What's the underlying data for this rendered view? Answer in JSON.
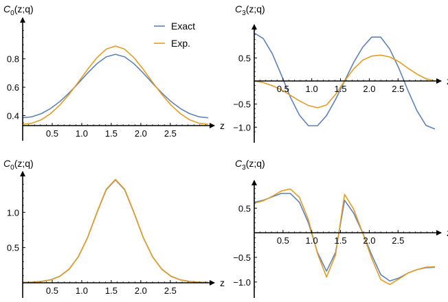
{
  "legend": {
    "entries": [
      {
        "label": "Exact",
        "color": "#5E81B5"
      },
      {
        "label": "Exp.",
        "color": "#E19C24"
      }
    ],
    "placement": "top-right of first panel"
  },
  "chart_data": [
    {
      "type": "line",
      "title": "",
      "ylabel_main": "C",
      "ylabel_sub": "0",
      "ylabel_rest": "(z;q)",
      "xlabel": "z",
      "xlim": [
        0,
        3.14159
      ],
      "ylim": [
        0.33,
        1.05
      ],
      "xticks": [
        0.5,
        1.0,
        1.5,
        2.0,
        2.5
      ],
      "xtick_labels": [
        "0.5",
        "1.0",
        "1.5",
        "2.0",
        "2.5"
      ],
      "yticks": [
        0.4,
        0.6,
        0.8
      ],
      "ytick_labels": [
        "0.4",
        "0.6",
        "0.8"
      ],
      "grid": false,
      "series": [
        {
          "name": "Exact",
          "color": "#5E81B5",
          "x": [
            0,
            0.15708,
            0.31416,
            0.47124,
            0.62832,
            0.7854,
            0.94248,
            1.09956,
            1.25664,
            1.41372,
            1.5708,
            1.72788,
            1.88496,
            2.04204,
            2.19911,
            2.35619,
            2.51327,
            2.67035,
            2.82743,
            2.98451,
            3.14159
          ],
          "values": [
            0.385,
            0.392,
            0.414,
            0.45,
            0.499,
            0.56,
            0.628,
            0.7,
            0.766,
            0.814,
            0.832,
            0.814,
            0.766,
            0.7,
            0.628,
            0.56,
            0.499,
            0.45,
            0.414,
            0.392,
            0.385
          ]
        },
        {
          "name": "Exp.",
          "color": "#E19C24",
          "x": [
            0,
            0.15708,
            0.31416,
            0.47124,
            0.62832,
            0.7854,
            0.94248,
            1.09956,
            1.25664,
            1.41372,
            1.5708,
            1.72788,
            1.88496,
            2.04204,
            2.19911,
            2.35619,
            2.51327,
            2.67035,
            2.82743,
            2.98451,
            3.14159
          ],
          "values": [
            0.339,
            0.347,
            0.371,
            0.414,
            0.474,
            0.55,
            0.636,
            0.726,
            0.808,
            0.868,
            0.89,
            0.868,
            0.808,
            0.726,
            0.636,
            0.55,
            0.474,
            0.414,
            0.371,
            0.347,
            0.339
          ]
        }
      ]
    },
    {
      "type": "line",
      "title": "",
      "ylabel_main": "C",
      "ylabel_sub": "3",
      "ylabel_rest": "(z;q)",
      "xlabel": "z",
      "xlim": [
        0,
        3.14159
      ],
      "ylim": [
        -1.1,
        1.1
      ],
      "xticks": [
        0.5,
        1.0,
        1.5,
        2.0,
        2.5
      ],
      "xtick_labels": [
        "0.5",
        "1.0",
        "1.5",
        "2.0",
        "2.5"
      ],
      "yticks": [
        -1.0,
        -0.5,
        0.5
      ],
      "ytick_labels": [
        "−1.0",
        "−0.5",
        "0.5"
      ],
      "grid": false,
      "series": [
        {
          "name": "Exact",
          "color": "#5E81B5",
          "x": [
            0,
            0.15708,
            0.31416,
            0.47124,
            0.62832,
            0.7854,
            0.94248,
            1.09956,
            1.25664,
            1.41372,
            1.5708,
            1.72788,
            1.88496,
            2.04204,
            2.19911,
            2.35619,
            2.51327,
            2.67035,
            2.82743,
            2.98451,
            3.14159
          ],
          "values": [
            1.04,
            0.92,
            0.59,
            0.13,
            -0.35,
            -0.74,
            -0.97,
            -0.97,
            -0.75,
            -0.4,
            0.0,
            0.4,
            0.73,
            0.95,
            0.95,
            0.69,
            0.28,
            -0.2,
            -0.64,
            -0.96,
            -1.04
          ]
        },
        {
          "name": "Exp.",
          "color": "#E19C24",
          "x": [
            0,
            0.15708,
            0.31416,
            0.47124,
            0.62832,
            0.7854,
            0.94248,
            1.09956,
            1.25664,
            1.41372,
            1.5708,
            1.72788,
            1.88496,
            2.04204,
            2.19911,
            2.35619,
            2.51327,
            2.67035,
            2.82743,
            2.98451,
            3.14159
          ],
          "values": [
            0.0,
            -0.035,
            -0.1,
            -0.19,
            -0.31,
            -0.43,
            -0.53,
            -0.58,
            -0.52,
            -0.29,
            0.0,
            0.26,
            0.45,
            0.54,
            0.56,
            0.52,
            0.42,
            0.28,
            0.15,
            0.05,
            0.0
          ]
        }
      ]
    },
    {
      "type": "line",
      "title": "",
      "ylabel_main": "C",
      "ylabel_sub": "0",
      "ylabel_rest": "(z;q)",
      "xlabel": "z",
      "xlim": [
        0,
        3.14159
      ],
      "ylim": [
        0.0,
        1.5
      ],
      "xticks": [
        0.5,
        1.0,
        1.5,
        2.0,
        2.5
      ],
      "xtick_labels": [
        "0.5",
        "1.0",
        "1.5",
        "2.0",
        "2.5"
      ],
      "yticks": [
        0.5,
        1.0
      ],
      "ytick_labels": [
        "0.5",
        "1.0"
      ],
      "grid": false,
      "series": [
        {
          "name": "Exact",
          "color": "#5E81B5",
          "x": [
            0,
            0.15708,
            0.31416,
            0.47124,
            0.62832,
            0.7854,
            0.94248,
            1.09956,
            1.25664,
            1.41372,
            1.5708,
            1.72788,
            1.88496,
            2.04204,
            2.19911,
            2.35619,
            2.51327,
            2.67035,
            2.82743,
            2.98451,
            3.14159
          ],
          "values": [
            0.006,
            0.009,
            0.019,
            0.042,
            0.093,
            0.193,
            0.37,
            0.642,
            0.993,
            1.319,
            1.46,
            1.319,
            0.993,
            0.642,
            0.37,
            0.193,
            0.093,
            0.042,
            0.019,
            0.009,
            0.006
          ]
        },
        {
          "name": "Exp.",
          "color": "#E19C24",
          "x": [
            0,
            0.15708,
            0.31416,
            0.47124,
            0.62832,
            0.7854,
            0.94248,
            1.09956,
            1.25664,
            1.41372,
            1.5708,
            1.72788,
            1.88496,
            2.04204,
            2.19911,
            2.35619,
            2.51327,
            2.67035,
            2.82743,
            2.98451,
            3.14159
          ],
          "values": [
            0.005,
            0.008,
            0.018,
            0.04,
            0.09,
            0.19,
            0.368,
            0.642,
            0.998,
            1.326,
            1.468,
            1.326,
            0.998,
            0.642,
            0.368,
            0.19,
            0.09,
            0.04,
            0.018,
            0.008,
            0.005
          ]
        }
      ]
    },
    {
      "type": "line",
      "title": "",
      "ylabel_main": "C",
      "ylabel_sub": "3",
      "ylabel_rest": "(z;q)",
      "xlabel": "z",
      "xlim": [
        0,
        3.14159
      ],
      "ylim": [
        -1.1,
        0.95
      ],
      "xticks": [
        0.5,
        1.0,
        1.5,
        2.0,
        2.5
      ],
      "xtick_labels": [
        "0.5",
        "1.0",
        "1.5",
        "2.0",
        "2.5"
      ],
      "yticks": [
        -1.0,
        -0.5,
        0.5
      ],
      "ytick_labels": [
        "−1.0",
        "−0.5",
        "0.5"
      ],
      "grid": false,
      "series": [
        {
          "name": "Exact",
          "color": "#5E81B5",
          "x": [
            0,
            0.15708,
            0.31416,
            0.47124,
            0.62832,
            0.7854,
            0.94248,
            1.09956,
            1.25664,
            1.41372,
            1.5708,
            1.72788,
            1.88496,
            2.04204,
            2.19911,
            2.35619,
            2.51327,
            2.67035,
            2.82743,
            2.98451,
            3.14159
          ],
          "values": [
            0.62,
            0.66,
            0.73,
            0.8,
            0.8,
            0.62,
            0.2,
            -0.4,
            -0.78,
            -0.4,
            0.66,
            0.4,
            0.0,
            -0.45,
            -0.85,
            -0.98,
            -0.92,
            -0.82,
            -0.75,
            -0.71,
            -0.7
          ]
        },
        {
          "name": "Exp.",
          "color": "#E19C24",
          "x": [
            0,
            0.15708,
            0.31416,
            0.47124,
            0.62832,
            0.7854,
            0.94248,
            1.09956,
            1.25664,
            1.41372,
            1.5708,
            1.72788,
            1.88496,
            2.04204,
            2.19911,
            2.35619,
            2.51327,
            2.67035,
            2.82743,
            2.98451,
            3.14159
          ],
          "values": [
            0.6,
            0.65,
            0.74,
            0.85,
            0.89,
            0.72,
            0.26,
            -0.42,
            -0.9,
            -0.45,
            0.78,
            0.48,
            0.0,
            -0.52,
            -0.95,
            -1.05,
            -0.94,
            -0.82,
            -0.75,
            -0.7,
            -0.69
          ]
        }
      ]
    }
  ]
}
